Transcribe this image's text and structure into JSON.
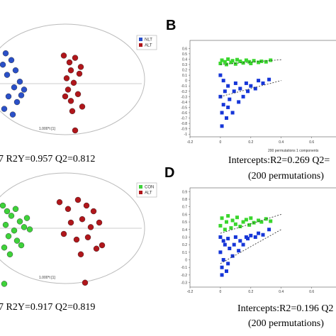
{
  "chart_data": [
    {
      "type": "scatter",
      "caption": "7 R2Y=0.957 Q2=0.812",
      "xlabel": "1.000*t [1]",
      "xlim": [
        -4,
        6
      ],
      "ylim": [
        -5,
        5
      ],
      "series": [
        {
          "name": "NLT",
          "color": "#2a50c8",
          "x": [
            -3.6,
            -3.2,
            -2.9,
            -3.5,
            -2.6,
            -3.0,
            -2.3,
            -3.4,
            -2.8,
            -3.7,
            -3.1,
            -2.5,
            -3.8
          ],
          "values": [
            2.8,
            2.2,
            1.3,
            0.9,
            0.3,
            -0.2,
            -0.4,
            -1.0,
            -1.5,
            -2.1,
            -2.6,
            -0.9,
            1.8
          ]
        },
        {
          "name": "ALT",
          "color": "#b0161b",
          "x": [
            0.5,
            0.9,
            1.3,
            1.0,
            1.6,
            0.7,
            1.2,
            0.8,
            1.5,
            1.0,
            1.8,
            1.1,
            1.3,
            1.7,
            0.6
          ],
          "values": [
            2.6,
            2.0,
            2.4,
            1.3,
            1.0,
            0.6,
            0.2,
            -0.4,
            -0.8,
            -1.4,
            -1.9,
            -2.3,
            -4.0,
            1.6,
            -1.0
          ]
        }
      ]
    },
    {
      "type": "permutation",
      "label": "B",
      "caption": "Intercepts:R2=0.269 Q2=",
      "caption2": "(200 permutations)",
      "note": "200 permutations 1 components",
      "xlim": [
        -0.2,
        0.76
      ],
      "ylim": [
        -1.05,
        0.75
      ],
      "xticks": [
        -0.2,
        0,
        0.2,
        0.4,
        0.6
      ],
      "yticks": [
        0.6,
        0.5,
        0.4,
        0.3,
        0.2,
        0.1,
        0,
        -0.1,
        -0.2,
        -0.3,
        -0.4,
        -0.5,
        -0.6,
        -0.7,
        -0.8,
        -0.9,
        -1
      ],
      "series": [
        {
          "color": "#3ad62e",
          "x": [
            0,
            0.01,
            0.03,
            0.04,
            0.05,
            0.07,
            0.08,
            0.1,
            0.11,
            0.13,
            0.15,
            0.17,
            0.19,
            0.2,
            0.22,
            0.25,
            0.27,
            0.3,
            0.33
          ],
          "values": [
            0.32,
            0.38,
            0.35,
            0.3,
            0.4,
            0.34,
            0.37,
            0.31,
            0.39,
            0.36,
            0.33,
            0.38,
            0.35,
            0.32,
            0.37,
            0.34,
            0.36,
            0.35,
            0.38
          ]
        },
        {
          "color": "#1636d8",
          "x": [
            0,
            0,
            0.01,
            0.01,
            0.02,
            0.02,
            0.03,
            0.04,
            0.05,
            0.05,
            0.06,
            0.08,
            0.09,
            0.1,
            0.12,
            0.13,
            0.15,
            0.17,
            0.18,
            0.2,
            0.23,
            0.25,
            0.28,
            0.32
          ],
          "values": [
            0.1,
            -0.3,
            -0.6,
            -0.85,
            0,
            -0.45,
            -0.2,
            -0.7,
            -0.1,
            -0.5,
            -0.35,
            -0.6,
            -0.2,
            -0.05,
            -0.4,
            -0.15,
            -0.3,
            -0.05,
            -0.2,
            -0.1,
            -0.15,
            0,
            -0.05,
            0.02
          ]
        }
      ],
      "lines": [
        {
          "x": [
            0,
            0.4
          ],
          "values": [
            0.3,
            0.39
          ]
        },
        {
          "x": [
            0,
            0.4
          ],
          "values": [
            -0.3,
            0
          ]
        }
      ]
    },
    {
      "type": "scatter",
      "caption": "7 R2Y=0.917 Q2=0.819",
      "xlabel": "1.000*t [1]",
      "xlim": [
        -4,
        6
      ],
      "ylim": [
        -5,
        5
      ],
      "series": [
        {
          "name": "CON",
          "color": "#3ed23a",
          "x": [
            -3.8,
            -3.5,
            -3.2,
            -2.9,
            -3.6,
            -2.6,
            -3.0,
            -2.3,
            -3.4,
            -2.8,
            -1.9,
            -3.7,
            -2.5,
            -2.1,
            -3.3,
            -3.7
          ],
          "values": [
            2.5,
            2.0,
            1.6,
            2.2,
            0.8,
            1.1,
            0.3,
            0.6,
            -0.2,
            -0.6,
            0.4,
            -1.2,
            -1.0,
            1.4,
            -1.8,
            -4.4
          ]
        },
        {
          "name": "ALT",
          "color": "#b0161b",
          "x": [
            0.2,
            0.8,
            1.5,
            2.1,
            2.6,
            1.0,
            1.8,
            2.4,
            3.0,
            0.5,
            1.4,
            2.2,
            2.8,
            1.7,
            3.2,
            2.0
          ],
          "values": [
            2.8,
            2.2,
            3.0,
            2.5,
            2.0,
            1.0,
            1.3,
            0.6,
            1.0,
            0.0,
            -0.5,
            -0.3,
            -1.3,
            -1.8,
            -1.0,
            -4.3
          ]
        }
      ]
    },
    {
      "type": "permutation",
      "label": "D",
      "caption": "Intercepts:R2=0.196 Q2",
      "caption2": "(200 permutations)",
      "xlim": [
        -0.2,
        0.76
      ],
      "ylim": [
        -0.36,
        0.95
      ],
      "xticks": [
        -0.2,
        0,
        0.2,
        0.4,
        0.6
      ],
      "yticks": [
        0.9,
        0.8,
        0.7,
        0.6,
        0.5,
        0.4,
        0.3,
        0.2,
        0.1,
        0,
        -0.1,
        -0.2,
        -0.3
      ],
      "series": [
        {
          "color": "#3ad62e",
          "x": [
            0,
            0.01,
            0.03,
            0.04,
            0.05,
            0.07,
            0.08,
            0.1,
            0.11,
            0.13,
            0.15,
            0.17,
            0.19,
            0.2,
            0.22,
            0.25,
            0.27,
            0.3,
            0.33
          ],
          "values": [
            0.45,
            0.55,
            0.4,
            0.5,
            0.58,
            0.42,
            0.52,
            0.47,
            0.56,
            0.44,
            0.5,
            0.53,
            0.46,
            0.55,
            0.49,
            0.52,
            0.5,
            0.54,
            0.51
          ]
        },
        {
          "color": "#1636d8",
          "x": [
            0,
            0,
            0.01,
            0.01,
            0.02,
            0.02,
            0.03,
            0.04,
            0.05,
            0.05,
            0.06,
            0.08,
            0.09,
            0.1,
            0.12,
            0.13,
            0.15,
            0.17,
            0.18,
            0.2,
            0.23,
            0.25,
            0.28,
            0.32
          ],
          "values": [
            0.3,
            0.1,
            -0.1,
            -0.2,
            0.25,
            0,
            0.2,
            -0.15,
            0.28,
            -0.05,
            0.15,
            0.05,
            0.2,
            0.3,
            0.12,
            0.25,
            0.2,
            0.3,
            0.28,
            0.32,
            0.3,
            0.35,
            0.33,
            0.4
          ]
        }
      ],
      "lines": [
        {
          "x": [
            0,
            0.4
          ],
          "values": [
            0.35,
            0.6
          ]
        },
        {
          "x": [
            0,
            0.4
          ],
          "values": [
            -0.05,
            0.4
          ]
        }
      ]
    }
  ]
}
